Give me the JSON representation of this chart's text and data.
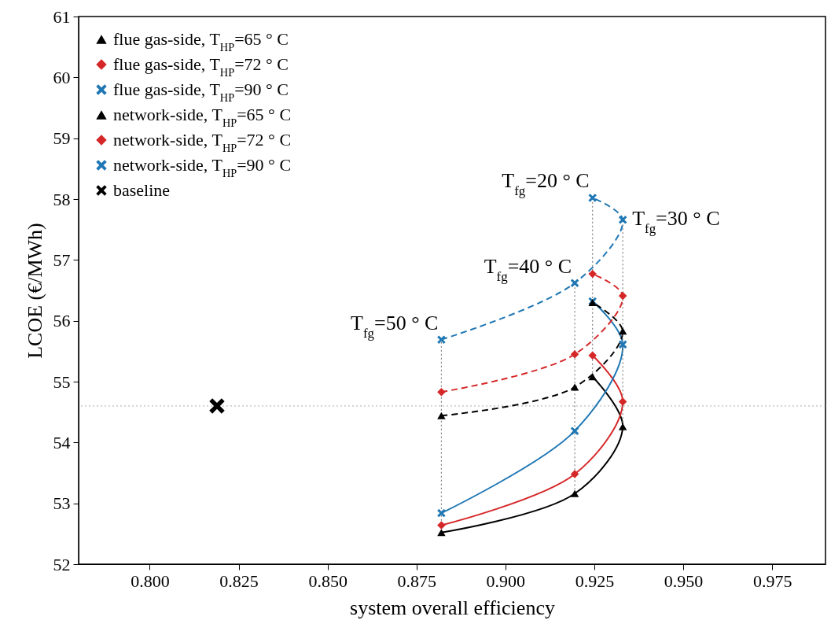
{
  "chart_data": {
    "type": "line",
    "xlabel": "system overall efficiency",
    "ylabel": "LCOE (€/MWh)",
    "xlim": [
      0.78,
      0.99
    ],
    "ylim": [
      52,
      61
    ],
    "xticks": [
      {
        "value": 0.8,
        "label": "0.800"
      },
      {
        "value": 0.825,
        "label": "0.825"
      },
      {
        "value": 0.85,
        "label": "0.850"
      },
      {
        "value": 0.875,
        "label": "0.875"
      },
      {
        "value": 0.9,
        "label": "0.900"
      },
      {
        "value": 0.925,
        "label": "0.925"
      },
      {
        "value": 0.95,
        "label": "0.950"
      },
      {
        "value": 0.975,
        "label": "0.975"
      }
    ],
    "yticks": [
      52,
      53,
      54,
      55,
      56,
      57,
      58,
      59,
      60,
      61
    ],
    "legend": "top left",
    "series": [
      {
        "type": "line",
        "name": "flue gas-side, T$_{HP}$=65  ° C",
        "color": "#000000",
        "marker": "triangle",
        "line_style": "solid",
        "x": [
          0.882,
          0.9195,
          0.933,
          0.9245
        ],
        "values": [
          52.52,
          53.16,
          54.26,
          55.08
        ]
      },
      {
        "type": "line",
        "name": "flue gas-side, T$_{HP}$=72  ° C",
        "color": "#d62728",
        "marker": "diamond",
        "line_style": "solid",
        "x": [
          0.882,
          0.9195,
          0.933,
          0.9245
        ],
        "values": [
          52.64,
          53.48,
          54.67,
          55.43
        ]
      },
      {
        "type": "line",
        "name": "flue gas-side, T$_{HP}$=90  ° C",
        "color": "#1f77b4",
        "marker": "cross",
        "line_style": "solid",
        "x": [
          0.882,
          0.9195,
          0.933,
          0.9245
        ],
        "values": [
          52.84,
          54.19,
          55.61,
          56.32
        ]
      },
      {
        "type": "line",
        "name": "network-side, T$_{HP}$=65  ° C",
        "color": "#000000",
        "marker": "triangle",
        "line_style": "dashed",
        "x": [
          0.882,
          0.9195,
          0.933,
          0.9245
        ],
        "values": [
          54.44,
          54.91,
          55.83,
          56.3
        ]
      },
      {
        "type": "line",
        "name": "network-side, T$_{HP}$=72  ° C",
        "color": "#d62728",
        "marker": "diamond",
        "line_style": "dashed",
        "x": [
          0.882,
          0.9195,
          0.933,
          0.9245
        ],
        "values": [
          54.83,
          55.45,
          56.41,
          56.77
        ]
      },
      {
        "type": "line",
        "name": "network-side, T$_{HP}$=90  ° C",
        "color": "#1f77b4",
        "marker": "cross",
        "line_style": "dashed",
        "x": [
          0.882,
          0.9195,
          0.933,
          0.9245
        ],
        "values": [
          55.69,
          56.62,
          57.66,
          58.02
        ]
      },
      {
        "type": "scatter",
        "name": "baseline",
        "color": "#000000",
        "marker": "cross",
        "x": [
          0.8189
        ],
        "values": [
          54.6
        ]
      },
      {
        "type": "line",
        "color": "#808080",
        "marker": "none",
        "line_style": "dotted",
        "x": [
          0.882,
          0.882
        ],
        "values": [
          52.52,
          55.69
        ]
      },
      {
        "type": "line",
        "color": "#808080",
        "marker": "none",
        "line_style": "dotted",
        "x": [
          0.9195,
          0.9195
        ],
        "values": [
          53.16,
          56.62
        ]
      },
      {
        "type": "line",
        "color": "#808080",
        "marker": "none",
        "line_style": "dotted",
        "x": [
          0.933,
          0.933
        ],
        "values": [
          54.26,
          57.66
        ]
      },
      {
        "type": "line",
        "color": "#808080",
        "marker": "none",
        "line_style": "dotted",
        "x": [
          0.9245,
          0.9245
        ],
        "values": [
          55.08,
          58.02
        ]
      }
    ],
    "ref_lines": [
      {
        "axis": "y",
        "value": 54.6,
        "color": "#aaaaaa",
        "line_style": "dotted"
      }
    ],
    "annotations": [
      {
        "text": "T$_{fg}$=20 ° C",
        "x": 0.9245,
        "y": 58.02
      },
      {
        "text": "T$_{fg}$=30 ° C",
        "x": 0.933,
        "y": 57.66
      },
      {
        "text": "T$_{fg}$=40 ° C",
        "x": 0.9195,
        "y": 56.62
      },
      {
        "text": "T$_{fg}$=50 ° C",
        "x": 0.882,
        "y": 55.69
      }
    ]
  }
}
